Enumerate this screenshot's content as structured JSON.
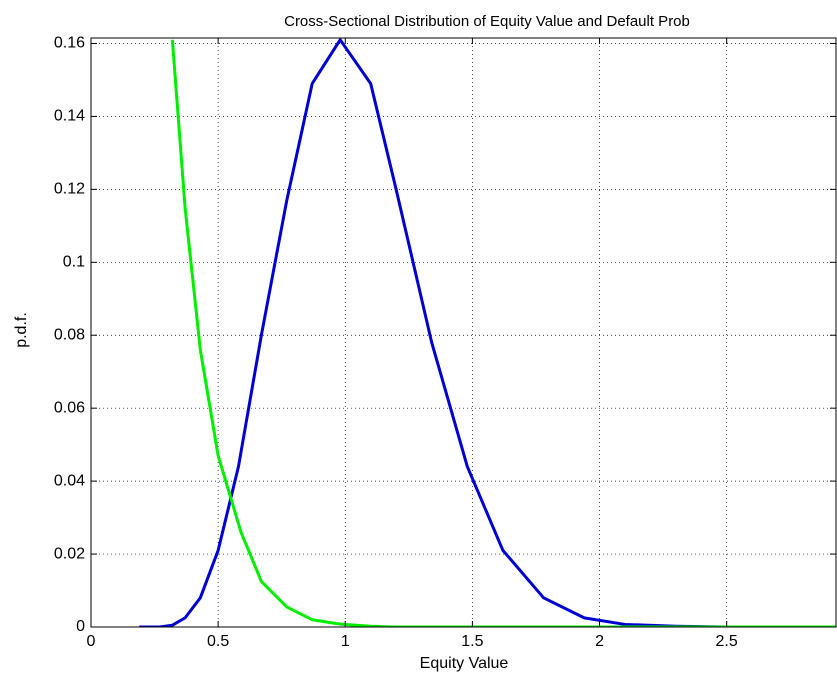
{
  "chart_data": {
    "type": "line",
    "title": "Cross-Sectional Distribution of Equity Value and Default Prob",
    "x_label": "Equity Value",
    "y_label": "p.d.f.",
    "series": [
      {
        "color": "#0000d0",
        "x": [
          0.19,
          0.27,
          0.32,
          0.37,
          0.43,
          0.5,
          0.58,
          0.67,
          0.77,
          0.87,
          0.98,
          1.1,
          1.2,
          1.34,
          1.48,
          1.62,
          1.78,
          1.94,
          2.1,
          2.3,
          2.5,
          2.93
        ],
        "values": [
          0,
          0,
          0.0005,
          0.0025,
          0.008,
          0.021,
          0.044,
          0.08,
          0.117,
          0.149,
          0.161,
          0.149,
          0.12,
          0.078,
          0.044,
          0.021,
          0.008,
          0.0025,
          0.0007,
          0.0002,
          0,
          0
        ]
      },
      {
        "color": "#00ee00",
        "x": [
          0.32,
          0.37,
          0.43,
          0.5,
          0.59,
          0.67,
          0.77,
          0.87,
          0.98,
          1.1,
          1.2,
          2.93
        ],
        "values": [
          0.161,
          0.115,
          0.076,
          0.047,
          0.026,
          0.0125,
          0.0055,
          0.002,
          0.0008,
          0.0002,
          0,
          0
        ]
      }
    ],
    "xlim": [
      0,
      2.93
    ],
    "ylim": [
      0,
      0.1615
    ],
    "xticks": [
      0,
      0.5,
      1,
      1.5,
      2,
      2.5
    ],
    "yticks": [
      0,
      0.02,
      0.04,
      0.06,
      0.08,
      0.1,
      0.12,
      0.14,
      0.16
    ],
    "grid": true
  }
}
